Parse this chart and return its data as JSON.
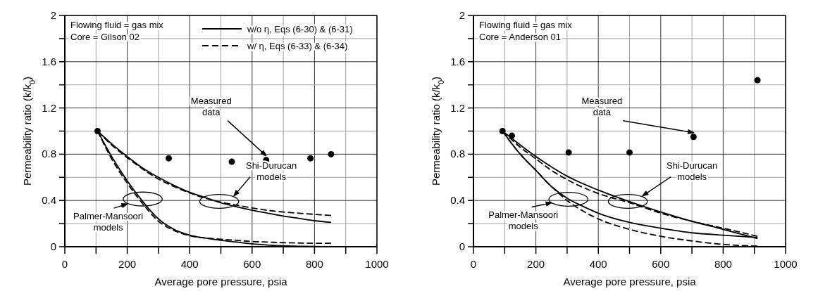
{
  "chart_data": [
    {
      "type": "line",
      "xlabel": "Average pore pressure, psia",
      "ylabel": "Permeability ratio (k/k$_{0}$)",
      "xlim": [
        0,
        1000
      ],
      "ylim": [
        0,
        2
      ],
      "xticks": [
        0,
        {
          "value": 100,
          "label": null
        },
        200,
        {
          "value": 300,
          "label": null
        },
        400,
        {
          "value": 500,
          "label": null
        },
        600,
        {
          "value": 700,
          "label": null
        },
        800,
        {
          "value": 900,
          "label": null
        },
        1000
      ],
      "yticks": [
        0,
        {
          "value": 0.2,
          "label": null
        },
        0.4,
        {
          "value": 0.6,
          "label": null
        },
        0.8,
        {
          "value": 1.0,
          "label": null
        },
        1.2,
        {
          "value": 1.4,
          "label": null
        },
        1.6,
        {
          "value": 1.8,
          "label": null
        },
        2
      ],
      "grid": true,
      "legend": "top right",
      "series": [
        {
          "type": "scatter",
          "marker": "circle",
          "color": "#000000",
          "x": [
            105,
            333,
            535,
            645,
            787,
            853
          ],
          "values": [
            1.0,
            0.765,
            0.735,
            0.75,
            0.765,
            0.8
          ]
        },
        {
          "type": "line",
          "name": "w/o η, Eqs (6-30) & (6-31)",
          "line_style": "solid",
          "color": "#000000",
          "x": [
            105,
            150,
            200,
            250,
            300,
            350,
            400,
            450,
            500,
            550,
            600,
            650,
            700,
            750,
            800,
            853
          ],
          "values": [
            1.0,
            0.89,
            0.78,
            0.68,
            0.6,
            0.53,
            0.47,
            0.425,
            0.38,
            0.345,
            0.315,
            0.29,
            0.265,
            0.245,
            0.225,
            0.21
          ]
        },
        {
          "type": "line",
          "name": "w/ η, Eqs (6-33) & (6-34)",
          "line_style": "dashed",
          "color": "#000000",
          "x": [
            105,
            150,
            200,
            250,
            300,
            350,
            400,
            450,
            500,
            550,
            600,
            650,
            700,
            750,
            800,
            853
          ],
          "values": [
            1.0,
            0.88,
            0.77,
            0.67,
            0.585,
            0.52,
            0.465,
            0.42,
            0.385,
            0.36,
            0.335,
            0.315,
            0.3,
            0.29,
            0.28,
            0.27
          ]
        },
        {
          "type": "line",
          "line_style": "solid",
          "color": "#000000",
          "x": [
            105,
            150,
            200,
            250,
            300,
            350,
            400,
            450,
            500,
            550,
            600,
            650,
            700,
            750,
            800,
            853
          ],
          "values": [
            1.0,
            0.78,
            0.57,
            0.39,
            0.24,
            0.15,
            0.1,
            0.075,
            0.055,
            0.04,
            0.025,
            0.015,
            0.008,
            0.004,
            0.002,
            0.0
          ]
        },
        {
          "type": "line",
          "line_style": "dashed",
          "color": "#000000",
          "x": [
            105,
            150,
            200,
            250,
            300,
            350,
            400,
            450,
            500,
            550,
            600,
            650,
            700,
            750,
            800,
            853
          ],
          "values": [
            1.0,
            0.76,
            0.55,
            0.37,
            0.22,
            0.14,
            0.095,
            0.075,
            0.065,
            0.055,
            0.045,
            0.04,
            0.035,
            0.032,
            0.03,
            0.03
          ]
        }
      ],
      "annotations": [
        "Flowing fluid = gas mix",
        "Core = Gilson 02",
        {
          "text": "Measured data",
          "x": 645,
          "y": 0.75
        },
        "Shi-Durucan models",
        "Palmer-Mansoori models"
      ]
    },
    {
      "type": "line",
      "xlabel": "Average pore pressure, psia",
      "ylabel": "Permeability ratio (k/k$_{0}$)",
      "xlim": [
        0,
        1000
      ],
      "ylim": [
        0,
        2
      ],
      "xticks": [
        0,
        {
          "value": 100,
          "label": null
        },
        200,
        {
          "value": 300,
          "label": null
        },
        400,
        {
          "value": 500,
          "label": null
        },
        600,
        {
          "value": 700,
          "label": null
        },
        800,
        {
          "value": 900,
          "label": null
        },
        1000
      ],
      "yticks": [
        0,
        {
          "value": 0.2,
          "label": null
        },
        0.4,
        {
          "value": 0.6,
          "label": null
        },
        0.8,
        {
          "value": 1.0,
          "label": null
        },
        1.2,
        {
          "value": 1.4,
          "label": null
        },
        1.6,
        {
          "value": 1.8,
          "label": null
        },
        2
      ],
      "grid": true,
      "series": [
        {
          "type": "scatter",
          "marker": "circle",
          "color": "#000000",
          "x": [
            93,
            123,
            305,
            500,
            705,
            910
          ],
          "values": [
            1.0,
            0.96,
            0.815,
            0.815,
            0.95,
            1.44
          ]
        },
        {
          "type": "line",
          "line_style": "solid",
          "color": "#000000",
          "x": [
            93,
            150,
            200,
            250,
            300,
            400,
            500,
            600,
            700,
            800,
            910
          ],
          "values": [
            1.0,
            0.88,
            0.78,
            0.69,
            0.61,
            0.49,
            0.39,
            0.3,
            0.22,
            0.15,
            0.07
          ]
        },
        {
          "type": "line",
          "line_style": "dashed",
          "color": "#000000",
          "x": [
            93,
            150,
            200,
            250,
            300,
            400,
            500,
            600,
            700,
            800,
            910
          ],
          "values": [
            1.0,
            0.86,
            0.76,
            0.66,
            0.58,
            0.46,
            0.38,
            0.29,
            0.22,
            0.16,
            0.09
          ]
        },
        {
          "type": "line",
          "line_style": "solid",
          "color": "#000000",
          "x": [
            93,
            150,
            200,
            250,
            300,
            350,
            400,
            500,
            600,
            700,
            800,
            910
          ],
          "values": [
            1.0,
            0.8,
            0.66,
            0.52,
            0.42,
            0.35,
            0.29,
            0.21,
            0.16,
            0.12,
            0.1,
            0.08
          ]
        },
        {
          "type": "line",
          "line_style": "dashed",
          "color": "#000000",
          "x": [
            93,
            150,
            200,
            250,
            300,
            350,
            400,
            500,
            600,
            700,
            800,
            910
          ],
          "values": [
            1.0,
            0.8,
            0.66,
            0.52,
            0.4,
            0.31,
            0.24,
            0.15,
            0.09,
            0.05,
            0.02,
            0.005
          ]
        }
      ],
      "annotations": [
        "Flowing fluid = gas mix",
        "Core = Anderson 01",
        {
          "text": "Measured data",
          "x": 705,
          "y": 0.95
        },
        "Shi-Durucan models",
        "Palmer-Mansoori models"
      ]
    }
  ]
}
